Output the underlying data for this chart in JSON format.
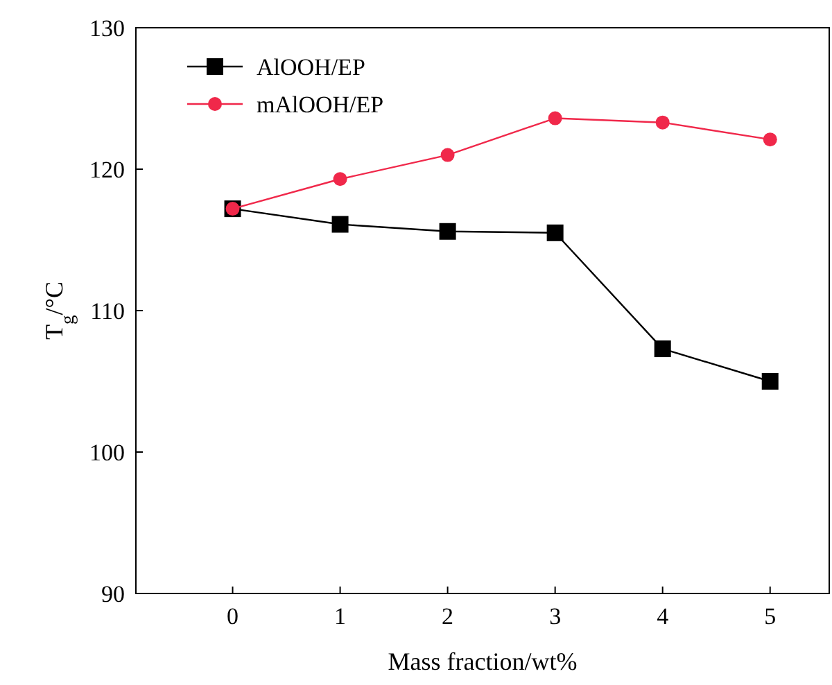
{
  "chart_data": {
    "type": "line",
    "xlabel": "Mass fraction/wt%",
    "ylabel": "T$_{g}$/°C",
    "x": [
      0,
      1,
      2,
      3,
      4,
      5
    ],
    "xlim": [
      -0.9,
      5.55
    ],
    "xticks": [
      0,
      1,
      2,
      3,
      4,
      5
    ],
    "ylim": [
      90,
      130
    ],
    "yticks": [
      90,
      100,
      110,
      120,
      130
    ],
    "series": [
      {
        "name": "AlOOH/EP",
        "color": "#000000",
        "marker": "square",
        "values": [
          117.2,
          116.1,
          115.6,
          115.5,
          107.3,
          105.0
        ]
      },
      {
        "name": "mAlOOH/EP",
        "color": "#f0284a",
        "marker": "circle",
        "values": [
          117.2,
          119.3,
          121.0,
          123.6,
          123.3,
          122.1
        ]
      }
    ],
    "legend": "top left",
    "grid": false,
    "line_style": "solid"
  }
}
